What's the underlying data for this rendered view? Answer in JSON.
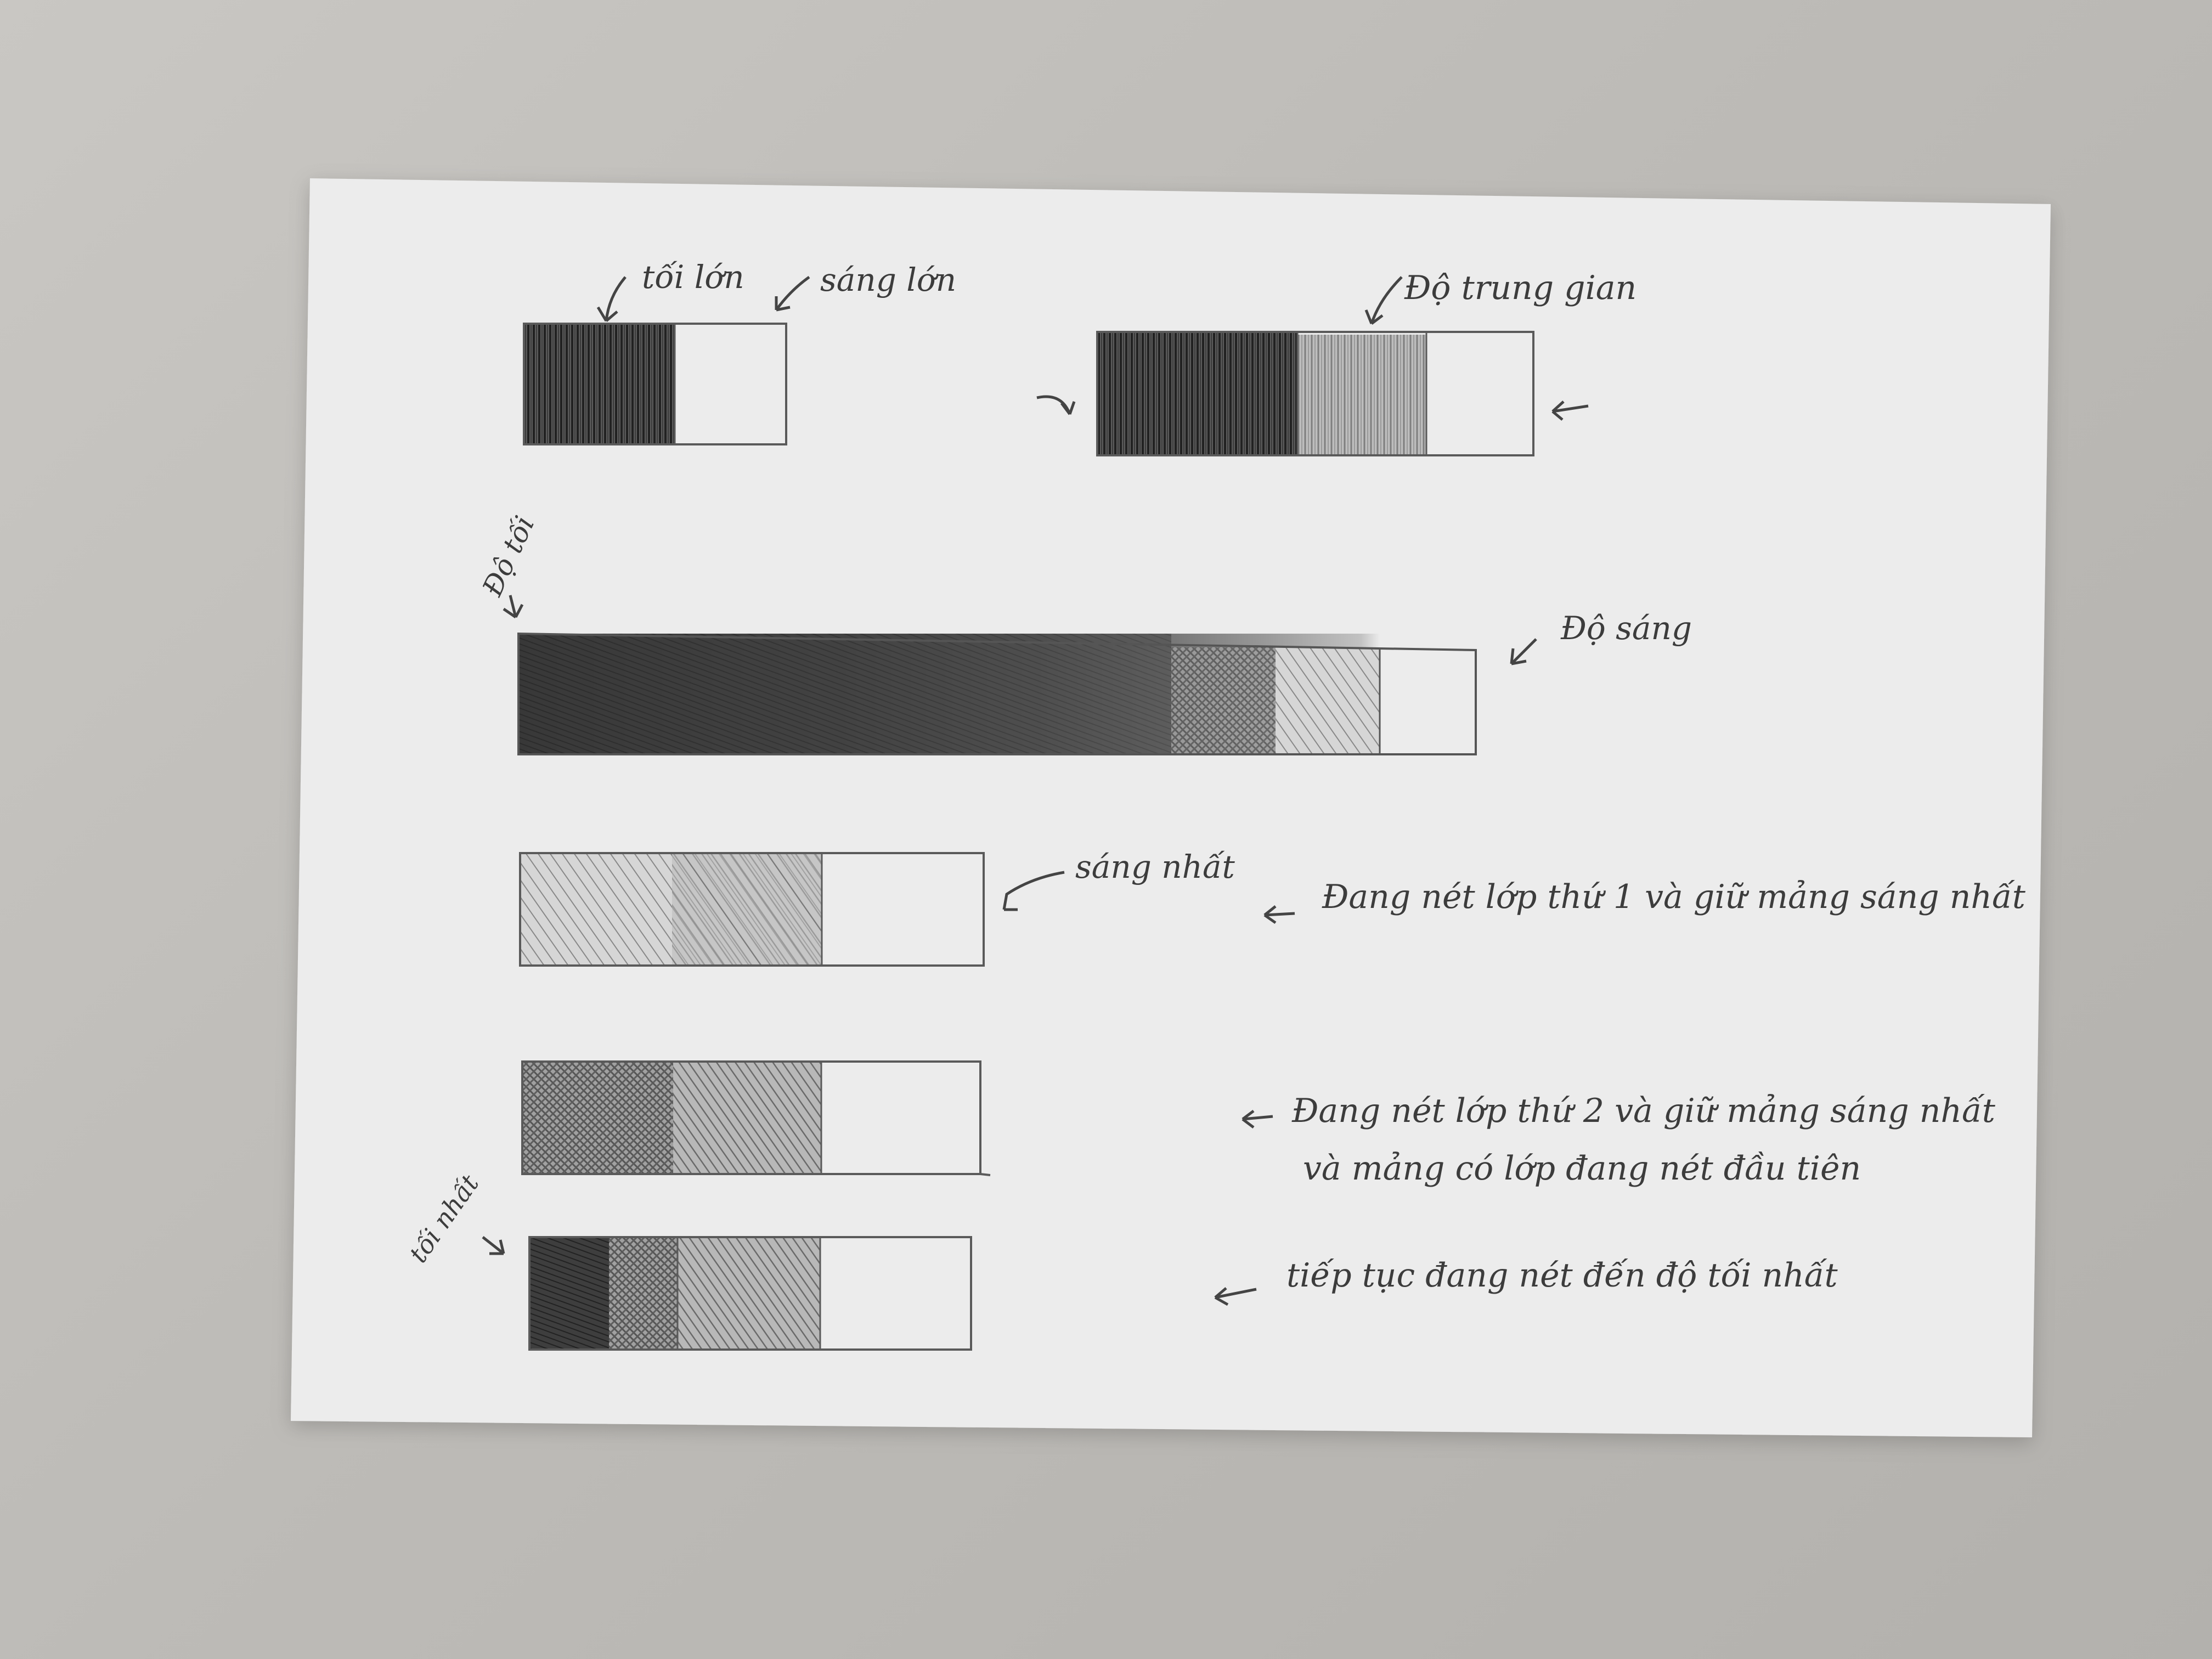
{
  "colors": {
    "background": "#bdbbb7",
    "paper": "#ececec",
    "pencil_dark": "#2e2e2e",
    "pencil_mid": "#6b6b6b",
    "pencil_light": "#a5a5a5",
    "pencil_line": "#5a5a5a"
  },
  "labels": {
    "dark_big": "tối lớn",
    "light_big": "sáng lớn",
    "mid_tone": "Độ trung gian",
    "darkness": "Độ tối",
    "brightness": "Độ sáng",
    "lightest": "sáng nhất",
    "darkest": "tối nhất"
  },
  "notes": {
    "step1": "Đang nét lớp thứ 1 và giữ mảng sáng nhất",
    "step2_line1": "Đang nét lớp thứ 2 và giữ mảng sáng nhất",
    "step2_line2": "và mảng có lớp đang nét đầu tiên",
    "step3": "tiếp tục đang nét đến độ tối nhất"
  },
  "value_scale": {
    "two_tone_fill_fraction": 0.58,
    "three_tone_levels": [
      0.85,
      0.45,
      0.0
    ],
    "nine_step_levels": [
      0.95,
      0.9,
      0.85,
      0.75,
      0.65,
      0.5,
      0.35,
      0.22,
      0.0
    ],
    "step1_levels": [
      0.3,
      0.3,
      0.0
    ],
    "step2_levels": [
      0.6,
      0.45,
      0.0
    ],
    "step3_levels": [
      0.95,
      0.6,
      0.45,
      0.0
    ]
  }
}
